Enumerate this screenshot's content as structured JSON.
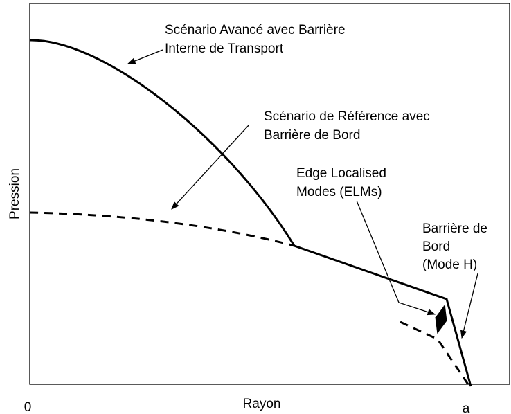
{
  "axes": {
    "y_label": "Pression",
    "x_label": "Rayon",
    "x_start": "0",
    "x_end": "a"
  },
  "annotations": [
    {
      "lines": [
        "Scénario Avancé avec Barrière",
        "Interne de Transport"
      ]
    },
    {
      "lines": [
        "Scénario de Référence avec",
        "Barrière de Bord"
      ]
    },
    {
      "lines": [
        "Edge Localised",
        "Modes (ELMs)"
      ]
    },
    {
      "lines": [
        "Barrière de",
        "Bord",
        "(Mode H)"
      ]
    }
  ]
}
